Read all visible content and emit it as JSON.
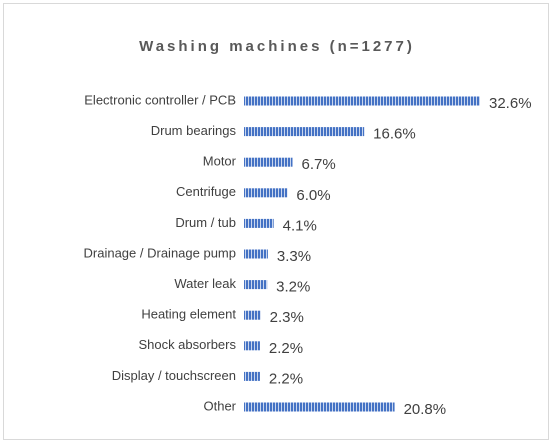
{
  "chart_data": {
    "type": "bar",
    "orientation": "horizontal",
    "title": "Washing machines (n=1277)",
    "categories": [
      "Electronic controller / PCB",
      "Drum bearings",
      "Motor",
      "Centrifuge",
      "Drum / tub",
      "Drainage / Drainage pump",
      "Water leak",
      "Heating element",
      "Shock absorbers",
      "Display / touchscreen",
      "Other"
    ],
    "values": [
      32.6,
      16.6,
      6.7,
      6.0,
      4.1,
      3.3,
      3.2,
      2.3,
      2.2,
      2.2,
      20.8
    ],
    "value_labels": [
      "32.6%",
      "16.6%",
      "6.7%",
      "6.0%",
      "4.1%",
      "3.3%",
      "3.2%",
      "2.3%",
      "2.2%",
      "2.2%",
      "20.8%"
    ],
    "color": "#4472c4"
  }
}
